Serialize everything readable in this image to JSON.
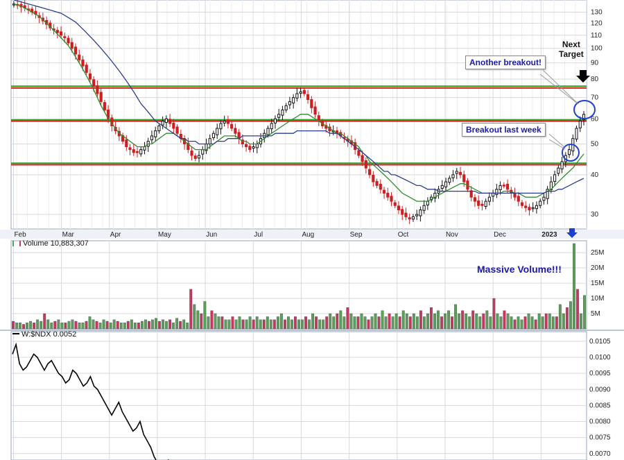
{
  "chart_data": [
    {
      "type": "candlestick",
      "panel": "price",
      "yscale": "log",
      "ylim": [
        27,
        142
      ],
      "y_ticks": [
        30,
        40,
        50,
        60,
        70,
        80,
        90,
        100,
        110,
        120,
        130
      ],
      "x_labels": [
        "Feb",
        "Mar",
        "Apr",
        "May",
        "Jun",
        "Jul",
        "Aug",
        "Sep",
        "Oct",
        "Nov",
        "Dec",
        "2023"
      ],
      "horizontal_levels": [
        {
          "value": 76,
          "color": "#22a022"
        },
        {
          "value": 75,
          "color": "#dd2222"
        },
        {
          "value": 59.5,
          "color": "#22a022"
        },
        {
          "value": 59,
          "color": "#dd2222"
        },
        {
          "value": 43.5,
          "color": "#22a022"
        },
        {
          "value": 43,
          "color": "#dd2222"
        }
      ],
      "closes": [
        138,
        137,
        135,
        134,
        133,
        130,
        128,
        125,
        122,
        119,
        116,
        114,
        112,
        110,
        108,
        104,
        100,
        96,
        92,
        88,
        84,
        80,
        76,
        72,
        68,
        64,
        60,
        57,
        55,
        53,
        51,
        49,
        48,
        47,
        47,
        48,
        49,
        51,
        53,
        55,
        57,
        59,
        60,
        58,
        56,
        54,
        52,
        50,
        48,
        46,
        45,
        46,
        48,
        50,
        52,
        54,
        56,
        58,
        59,
        58,
        56,
        54,
        52,
        50,
        49,
        48,
        49,
        50,
        52,
        54,
        56,
        58,
        60,
        62,
        64,
        66,
        68,
        70,
        72,
        73,
        72,
        69,
        65,
        62,
        59,
        57,
        56,
        55,
        55,
        54,
        53,
        52,
        51,
        50,
        48,
        46,
        44,
        42,
        40,
        38,
        37,
        36,
        35,
        34,
        33,
        32,
        31,
        30,
        29.5,
        29,
        29.5,
        30,
        31,
        32,
        33,
        34,
        35,
        36,
        37,
        38,
        39,
        40,
        41,
        40,
        38,
        36,
        34,
        33,
        32,
        32,
        33,
        34,
        35,
        36,
        37,
        37,
        36,
        35,
        34,
        33,
        32,
        31.5,
        31,
        31.5,
        32,
        33,
        34,
        36,
        38,
        40,
        42,
        44,
        46,
        48,
        52,
        56,
        59,
        62
      ],
      "series": [
        {
          "name": "",
          "color": "#2e8b2e",
          "values": [
            138,
            137,
            136,
            134,
            132,
            130,
            128,
            126,
            123,
            120,
            117,
            114,
            111,
            108,
            105,
            102,
            98,
            94,
            90,
            86,
            82,
            78,
            74,
            70,
            66,
            63,
            60,
            58,
            56,
            54,
            53,
            52,
            51,
            50,
            49,
            49,
            49,
            50,
            50,
            51,
            52,
            53,
            54,
            54,
            54,
            53,
            52,
            51,
            50,
            49,
            48,
            48,
            48,
            48,
            49,
            50,
            51,
            52,
            53,
            53,
            53,
            53,
            52,
            51,
            51,
            50,
            50,
            50,
            51,
            52,
            53,
            54,
            55,
            56,
            57,
            58,
            59,
            60,
            61,
            62,
            62,
            62,
            61,
            60,
            59,
            58,
            57,
            56,
            55,
            54,
            54,
            53,
            52,
            51,
            50,
            49,
            47,
            46,
            44,
            43,
            42,
            41,
            40,
            39,
            38,
            37,
            36,
            35,
            34.5,
            34,
            33.5,
            33,
            33,
            33,
            33,
            33.5,
            34,
            34.5,
            35,
            35.5,
            36,
            36.5,
            37,
            37.5,
            37.5,
            37,
            36.5,
            36,
            35.5,
            35,
            35,
            35,
            35,
            35,
            35,
            35.5,
            35.5,
            35.5,
            35,
            35,
            34.5,
            34,
            34,
            34,
            34,
            34.5,
            35,
            35.5,
            36,
            37,
            38,
            39,
            40,
            41,
            42,
            43.5,
            45,
            46.5
          ]
        },
        {
          "name": "",
          "color": "#2a3c8f",
          "values": [
            142,
            141,
            140,
            139,
            138,
            137,
            136,
            135,
            134,
            133,
            132,
            131,
            130,
            129,
            127,
            125,
            123,
            121,
            118,
            115,
            112,
            109,
            106,
            103,
            100,
            97,
            94,
            91,
            88,
            85,
            82,
            79,
            76,
            73,
            70,
            67,
            65,
            63,
            61,
            59,
            58,
            57,
            56,
            55,
            54,
            53,
            52,
            52,
            51,
            51,
            51,
            50,
            50,
            50,
            50,
            50,
            51,
            51,
            51,
            52,
            52,
            52,
            52,
            53,
            53,
            53,
            53,
            53,
            53,
            53,
            53,
            53,
            54,
            54,
            54,
            54,
            54,
            54,
            55,
            55,
            55,
            55,
            55,
            55,
            55,
            55,
            55,
            54,
            54,
            54,
            53,
            52,
            51,
            50,
            49,
            48,
            47,
            46,
            45,
            44,
            43,
            42,
            41,
            41,
            40,
            40,
            39.5,
            39,
            38.5,
            38,
            37.5,
            37,
            37,
            36.5,
            36,
            36,
            36,
            35.5,
            35.5,
            35.5,
            35.5,
            35.5,
            35.5,
            35.5,
            35.5,
            35.5,
            35.5,
            35.5,
            35,
            35,
            35,
            35,
            35,
            35,
            35,
            35,
            35,
            35,
            35,
            35,
            35,
            35,
            35,
            35,
            35,
            35,
            35,
            35.5,
            35.5,
            35.5,
            36,
            36,
            36.5,
            37,
            37.5,
            38,
            38.5,
            39
          ]
        }
      ]
    },
    {
      "type": "bar",
      "panel": "volume",
      "label": "Volume 10,883,307",
      "y_ticks": [
        "5M",
        "10M",
        "15M",
        "20M",
        "25M"
      ],
      "ylim": [
        0,
        28
      ],
      "values": [
        2.5,
        2,
        2,
        1.5,
        2,
        2.5,
        2,
        3,
        2.5,
        5,
        3,
        2,
        2.5,
        3,
        2,
        2,
        2.5,
        3,
        2.5,
        2,
        2,
        2.5,
        4,
        3,
        2.5,
        2,
        3,
        2.5,
        2,
        3,
        2.5,
        2,
        2,
        2.5,
        3,
        2,
        2,
        2.5,
        3,
        2.5,
        3,
        3.5,
        2.5,
        3,
        2.5,
        3,
        2,
        3.5,
        2.5,
        3,
        2,
        13,
        8,
        6,
        5,
        9,
        4,
        6,
        5,
        4,
        4,
        3,
        3,
        4,
        3,
        4,
        3,
        3,
        4,
        3,
        4,
        3,
        3,
        4,
        3,
        3,
        4,
        5,
        3,
        4,
        3,
        4,
        3,
        3,
        4,
        3,
        5,
        4,
        3,
        3,
        4,
        5,
        4,
        5,
        6,
        4,
        7,
        5,
        4,
        4,
        5,
        4,
        3,
        4,
        5,
        4,
        6,
        4,
        5,
        4,
        5,
        4,
        6,
        5,
        4,
        5,
        4,
        6,
        4,
        5,
        7,
        5,
        6,
        4,
        5,
        6,
        4,
        8,
        5,
        6,
        5,
        4,
        6,
        5,
        4,
        5,
        6,
        4,
        10,
        5,
        4,
        6,
        5,
        4,
        3,
        4,
        3,
        4,
        5,
        4,
        3,
        5,
        4,
        5,
        5,
        4,
        4,
        8,
        5,
        7,
        9,
        28,
        13,
        5,
        11
      ],
      "up_color": "#5a9e5a",
      "down_color": "#c23a5f"
    },
    {
      "type": "line",
      "panel": "relative-strength",
      "label": "W:$NDX 0.0052",
      "y_ticks": [
        0.007,
        0.0075,
        0.008,
        0.0085,
        0.009,
        0.0095,
        0.01,
        0.0105
      ],
      "ylim": [
        0.0068,
        0.0108
      ],
      "values": [
        0.0101,
        0.0104,
        0.0098,
        0.0096,
        0.0097,
        0.0099,
        0.0101,
        0.01,
        0.0098,
        0.0096,
        0.0098,
        0.0099,
        0.0097,
        0.0095,
        0.0094,
        0.0092,
        0.0093,
        0.0096,
        0.0095,
        0.0093,
        0.0091,
        0.0092,
        0.0094,
        0.0091,
        0.009,
        0.0088,
        0.0086,
        0.0084,
        0.0082,
        0.0084,
        0.0086,
        0.0083,
        0.0081,
        0.0079,
        0.0077,
        0.0078,
        0.008,
        0.0076,
        0.0074,
        0.0072,
        0.0069,
        0.0067,
        0.0066,
        0.0067,
        0.0068,
        0.0066
      ]
    }
  ],
  "annotations": {
    "another_breakout": "Another breakout!",
    "breakout_last_week": "Breakout last week",
    "next_target_line1": "Next",
    "next_target_line2": "Target",
    "massive_volume": "Massive Volume!!!"
  },
  "colors": {
    "annotation_text": "#1a1aa6",
    "breakout_circle": "#1f3fd1",
    "grid": "#d8d8d8",
    "axis_bg": "#ffffff",
    "separator": "#b9c6d9"
  }
}
